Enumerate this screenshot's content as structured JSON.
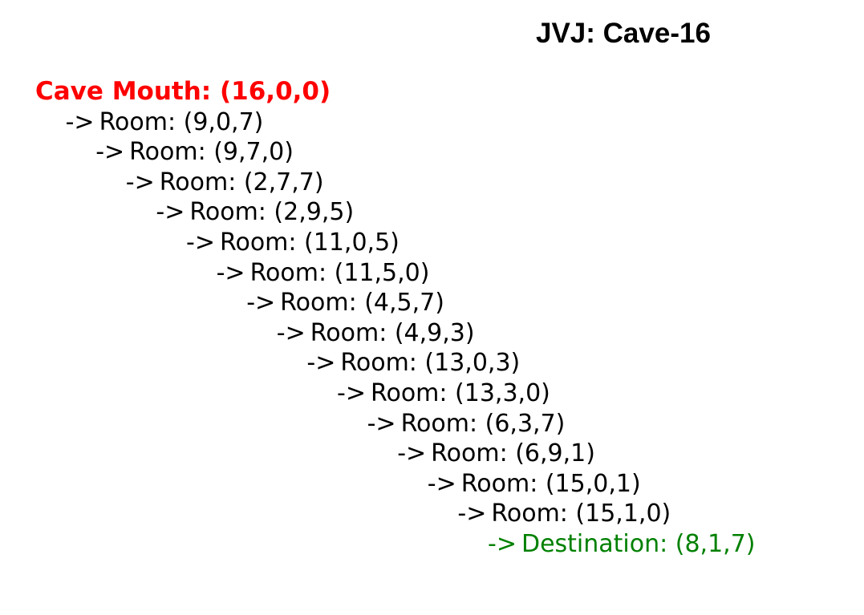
{
  "title": "JVJ: Cave-16",
  "colors": {
    "start": "#ff0000",
    "room": "#000000",
    "destination": "#008000"
  },
  "path": [
    {
      "arrow": "",
      "label": "Cave Mouth: (16,0,0)",
      "kind": "start"
    },
    {
      "arrow": "->",
      "label": "Room: (9,0,7)",
      "kind": "room"
    },
    {
      "arrow": "->",
      "label": "Room: (9,7,0)",
      "kind": "room"
    },
    {
      "arrow": "->",
      "label": "Room: (2,7,7)",
      "kind": "room"
    },
    {
      "arrow": "->",
      "label": "Room: (2,9,5)",
      "kind": "room"
    },
    {
      "arrow": "->",
      "label": "Room: (11,0,5)",
      "kind": "room"
    },
    {
      "arrow": "->",
      "label": "Room: (11,5,0)",
      "kind": "room"
    },
    {
      "arrow": "->",
      "label": "Room: (4,5,7)",
      "kind": "room"
    },
    {
      "arrow": "->",
      "label": "Room: (4,9,3)",
      "kind": "room"
    },
    {
      "arrow": "->",
      "label": "Room: (13,0,3)",
      "kind": "room"
    },
    {
      "arrow": "->",
      "label": "Room: (13,3,0)",
      "kind": "room"
    },
    {
      "arrow": "->",
      "label": "Room: (6,3,7)",
      "kind": "room"
    },
    {
      "arrow": "->",
      "label": "Room: (6,9,1)",
      "kind": "room"
    },
    {
      "arrow": "->",
      "label": "Room: (15,0,1)",
      "kind": "room"
    },
    {
      "arrow": "->",
      "label": "Room: (15,1,0)",
      "kind": "room"
    },
    {
      "arrow": "->",
      "label": "Destination: (8,1,7)",
      "kind": "destination"
    }
  ]
}
